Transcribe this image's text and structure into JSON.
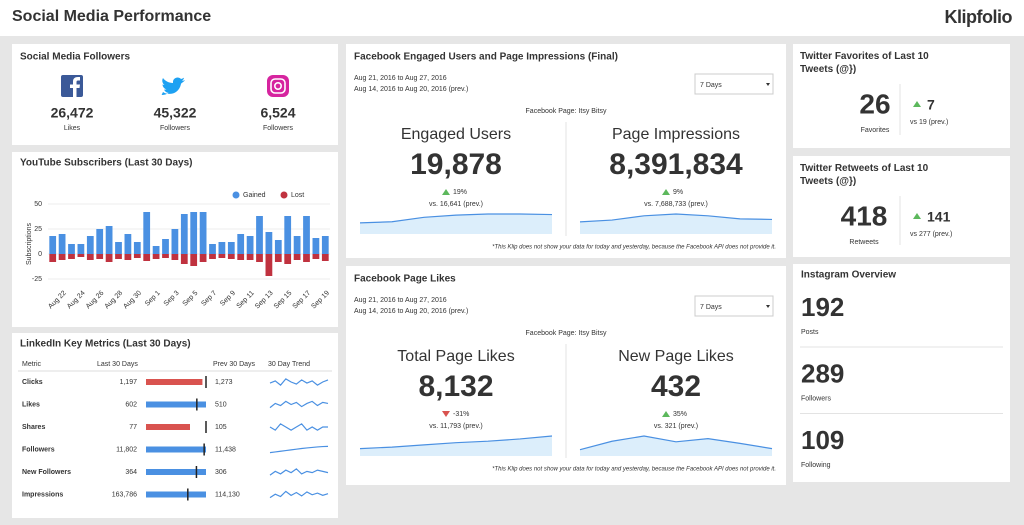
{
  "header": {
    "title": "Social Media Performance",
    "brand": "Klipfolio"
  },
  "followers": {
    "title": "Social Media Followers",
    "items": [
      {
        "network": "facebook",
        "value": "26,472",
        "label": "Likes"
      },
      {
        "network": "twitter",
        "value": "45,322",
        "label": "Followers"
      },
      {
        "network": "instagram",
        "value": "6,524",
        "label": "Followers"
      }
    ]
  },
  "youtube": {
    "title": "YouTube Subscribers (Last 30 Days)",
    "chart": {
      "type": "bar",
      "y_label": "Subscriptions",
      "categories": [
        null,
        "Aug 22",
        null,
        "Aug 24",
        null,
        "Aug 26",
        null,
        "Aug 28",
        null,
        "Aug 30",
        null,
        "Sep 1",
        null,
        "Sep 3",
        null,
        "Sep 5",
        null,
        "Sep 7",
        null,
        "Sep 9",
        null,
        "Sep 11",
        null,
        "Sep 13",
        null,
        "Sep 15",
        null,
        "Sep 17",
        null,
        "Sep 19"
      ],
      "series": [
        {
          "name": "Gained",
          "color": "#4a90e2",
          "values": [
            18,
            20,
            10,
            10,
            18,
            25,
            28,
            12,
            20,
            12,
            42,
            8,
            15,
            25,
            40,
            42,
            42,
            10,
            12,
            12,
            20,
            18,
            38,
            22,
            14,
            38,
            18,
            38,
            16,
            18
          ]
        },
        {
          "name": "Lost",
          "color": "#c0323f",
          "values": [
            -8,
            -6,
            -5,
            -3,
            -6,
            -5,
            -8,
            -5,
            -6,
            -4,
            -7,
            -5,
            -4,
            -6,
            -10,
            -12,
            -8,
            -5,
            -4,
            -5,
            -6,
            -6,
            -8,
            -22,
            -8,
            -10,
            -6,
            -8,
            -5,
            -7
          ]
        }
      ],
      "ylim": [
        -30,
        50
      ],
      "yticks": [
        -25,
        0,
        25,
        50
      ]
    }
  },
  "linkedin": {
    "title": "LinkedIn Key Metrics (Last 30 Days)",
    "columns": [
      "Metric",
      "Last 30 Days",
      "Prev 30 Days",
      "30 Day Trend"
    ],
    "rows": [
      {
        "metric": "Clicks",
        "last": {
          "value": 1197,
          "label": "1,197"
        },
        "prev": {
          "value": 1273,
          "label": "1,273"
        },
        "trend": [
          40,
          42,
          38,
          44,
          41,
          39,
          43,
          40,
          42,
          38,
          41,
          43
        ]
      },
      {
        "metric": "Likes",
        "last": {
          "value": 602,
          "label": "602"
        },
        "prev": {
          "value": 510,
          "label": "510"
        },
        "trend": [
          20,
          24,
          22,
          26,
          23,
          25,
          21,
          24,
          26,
          22,
          25,
          24
        ]
      },
      {
        "metric": "Shares",
        "last": {
          "value": 77,
          "label": "77"
        },
        "prev": {
          "value": 105,
          "label": "105"
        },
        "trend": [
          3,
          2,
          4,
          3,
          2,
          3,
          4,
          2,
          3,
          2,
          3,
          3
        ]
      },
      {
        "metric": "Followers",
        "last": {
          "value": 11802,
          "label": "11,802"
        },
        "prev": {
          "value": 11438,
          "label": "11,438"
        },
        "trend": [
          11440,
          11480,
          11520,
          11560,
          11600,
          11640,
          11680,
          11710,
          11740,
          11770,
          11790,
          11802
        ]
      },
      {
        "metric": "New Followers",
        "last": {
          "value": 364,
          "label": "364"
        },
        "prev": {
          "value": 306,
          "label": "306"
        },
        "trend": [
          10,
          13,
          11,
          14,
          12,
          15,
          11,
          13,
          12,
          14,
          13,
          12
        ]
      },
      {
        "metric": "Impressions",
        "last": {
          "value": 163786,
          "label": "163,786"
        },
        "prev": {
          "value": 114130,
          "label": "114,130"
        },
        "trend": [
          5000,
          5600,
          5200,
          6100,
          5400,
          5900,
          5300,
          6000,
          5500,
          5800,
          5400,
          5700
        ]
      }
    ]
  },
  "fb_engaged": {
    "title": "Facebook Engaged Users and Page Impressions (Final)",
    "date_range": "Aug 21, 2016 to Aug 27, 2016",
    "prev_range": "Aug 14, 2016 to Aug 20, 2016 (prev.)",
    "period": "7 Days",
    "page": "Facebook Page: Itsy Bitsy",
    "metrics": [
      {
        "label": "Engaged Users",
        "value": "19,878",
        "change": "19%",
        "direction": "up",
        "prev": "vs. 16,641 (prev.)",
        "trend": [
          20,
          22,
          30,
          34,
          36,
          36,
          35
        ]
      },
      {
        "label": "Page Impressions",
        "value": "8,391,834",
        "change": "9%",
        "direction": "up",
        "prev": "vs. 7,688,733 (prev.)",
        "trend": [
          20,
          23,
          30,
          33,
          30,
          25,
          24
        ]
      }
    ],
    "note": "*This Klip does not show your data for today and yesterday, because the Facebook API does not provide it."
  },
  "fb_likes": {
    "title": "Facebook Page Likes",
    "date_range": "Aug 21, 2016 to Aug 27, 2016",
    "prev_range": "Aug 14, 2016 to Aug 20, 2016 (prev.)",
    "period": "7 Days",
    "page": "Facebook Page: Itsy Bitsy",
    "metrics": [
      {
        "label": "Total Page Likes",
        "value": "8,132",
        "change": "-31%",
        "direction": "down",
        "prev": "vs. 11,793 (prev.)",
        "trend": [
          10,
          12,
          15,
          18,
          20,
          23,
          27
        ]
      },
      {
        "label": "New Page Likes",
        "value": "432",
        "change": "35%",
        "direction": "up",
        "prev": "vs. 321 (prev.)",
        "trend": [
          12,
          28,
          38,
          27,
          33,
          24,
          14
        ]
      }
    ],
    "note": "*This Klip does not show your data for today and yesterday, because the Facebook API does not provide it."
  },
  "twitter_favorites": {
    "title": "Twitter Favorites of Last 10 Tweets (@})",
    "value": "26",
    "label": "Favorites",
    "change": "7",
    "prev": "vs 19 (prev.)"
  },
  "twitter_retweets": {
    "title": "Twitter Retweets of Last 10 Tweets (@})",
    "value": "418",
    "label": "Retweets",
    "change": "141",
    "prev": "vs 277 (prev.)"
  },
  "instagram": {
    "title": "Instagram Overview",
    "items": [
      {
        "value": "192",
        "label": "Posts"
      },
      {
        "value": "289",
        "label": "Followers"
      },
      {
        "value": "109",
        "label": "Following"
      }
    ]
  }
}
